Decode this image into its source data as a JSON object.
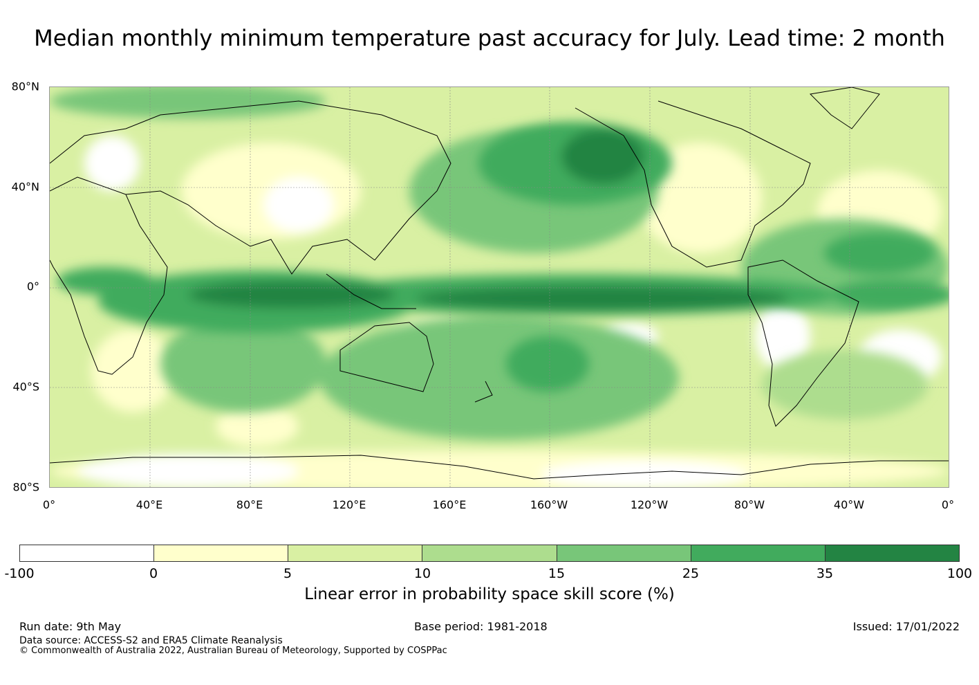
{
  "title": "Median monthly minimum temperature past accuracy for July. Lead time: 2 month",
  "map": {
    "lat_labels": [
      "80°N",
      "40°N",
      "0°",
      "40°S",
      "80°S"
    ],
    "lon_labels": [
      "0°",
      "40°E",
      "80°E",
      "120°E",
      "160°E",
      "160°W",
      "120°W",
      "80°W",
      "40°W",
      "0°"
    ],
    "field_description": "Skill score shading over a Pacific-centred world map"
  },
  "colorbar": {
    "ticks": [
      "-100",
      "0",
      "5",
      "10",
      "15",
      "25",
      "35",
      "100"
    ],
    "colors": [
      "#ffffff",
      "#ffffcc",
      "#d9f0a3",
      "#addd8e",
      "#78c679",
      "#41ab5d",
      "#238443"
    ],
    "label": "Linear error in probability space skill score (%)"
  },
  "footer": {
    "run_date": "Run date: 9th May",
    "base_period": "Base period: 1981-2018",
    "issued": "Issued: 17/01/2022",
    "data_source": "Data source: ACCESS-S2 and ERA5 Climate Reanalysis",
    "copyright": "© Commonwealth of Australia 2022, Australian Bureau of Meteorology, Supported by COSPPac"
  }
}
